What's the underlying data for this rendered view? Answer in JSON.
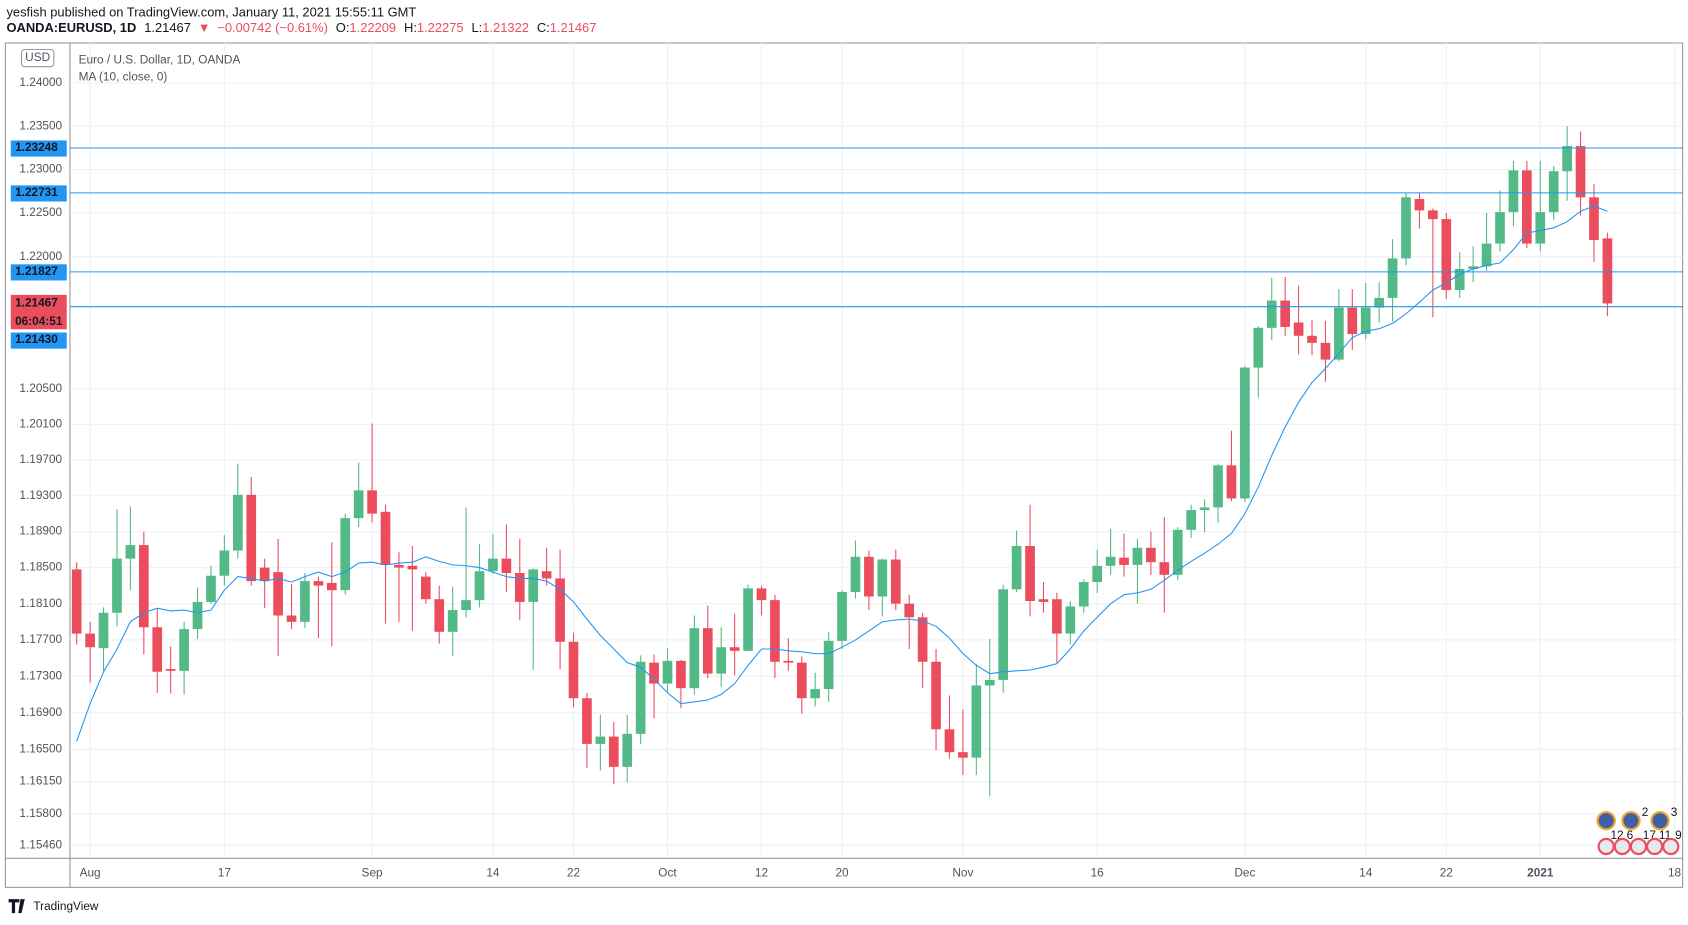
{
  "header": {
    "publisher": "yesfish published on TradingView.com, January 11, 2021 15:55:11 GMT",
    "symbol": "OANDA:EURUSD, 1D",
    "change": "−0.00742 (−0.61%)",
    "o": "O:",
    "h": "H:",
    "l": "L:",
    "c": "C:"
  },
  "chart_data": {
    "type": "candlestick",
    "title": "Euro / U.S. Dollar, 1D, OANDA",
    "currency": "USD",
    "countdown": "06:04:51",
    "up_color": "#53b987",
    "down_color": "#eb4d5c",
    "log_scale": true,
    "grid": true,
    "open": [
      1.1848,
      1.1777,
      1.1761,
      1.18,
      1.186,
      1.1875,
      1.1784,
      1.1738,
      1.1736,
      1.1782,
      1.1812,
      1.1841,
      1.1869,
      1.1931,
      1.185,
      1.1845,
      1.1797,
      1.179,
      1.1835,
      1.1833,
      1.1825,
      1.1905,
      1.1936,
      1.1912,
      1.1853,
      1.1852,
      1.184,
      1.1815,
      1.1779,
      1.1803,
      1.1814,
      1.1846,
      1.186,
      1.1844,
      1.1812,
      1.1846,
      1.1838,
      1.1768,
      1.1706,
      1.1656,
      1.1664,
      1.1631,
      1.1667,
      1.1745,
      1.1722,
      1.1747,
      1.1717,
      1.1783,
      1.1733,
      1.1762,
      1.1758,
      1.1827,
      1.1814,
      1.1747,
      1.1745,
      1.1706,
      1.1716,
      1.1769,
      1.1823,
      1.1862,
      1.1818,
      1.1859,
      1.181,
      1.1795,
      1.1746,
      1.1672,
      1.1647,
      1.1641,
      1.172,
      1.1726,
      1.1826,
      1.1874,
      1.1815,
      1.1815,
      1.1777,
      1.1807,
      1.1834,
      1.1852,
      1.1861,
      1.1853,
      1.1872,
      1.1856,
      1.1842,
      1.1892,
      1.1914,
      1.1917,
      1.1964,
      1.1927,
      1.2074,
      1.2119,
      1.215,
      1.2125,
      1.211,
      1.2102,
      1.2083,
      1.2142,
      1.2112,
      1.2142,
      1.2153,
      1.2198,
      1.2266,
      1.2253,
      1.2243,
      1.2162,
      1.2186,
      1.2189,
      1.2215,
      1.2251,
      1.2299,
      1.2215,
      1.2251,
      1.2298,
      1.2327,
      1.2268,
      1.22209
    ],
    "high": [
      1.1856,
      1.179,
      1.1806,
      1.1915,
      1.1918,
      1.189,
      1.1805,
      1.1763,
      1.179,
      1.1828,
      1.1852,
      1.1886,
      1.1966,
      1.1951,
      1.186,
      1.1882,
      1.1832,
      1.1844,
      1.184,
      1.1878,
      1.191,
      1.1967,
      1.2011,
      1.192,
      1.1867,
      1.1874,
      1.1845,
      1.183,
      1.1829,
      1.1917,
      1.1876,
      1.1887,
      1.1898,
      1.1882,
      1.1849,
      1.1872,
      1.187,
      1.1778,
      1.1712,
      1.1688,
      1.168,
      1.1688,
      1.1753,
      1.1754,
      1.1761,
      1.1748,
      1.1797,
      1.1808,
      1.1784,
      1.1799,
      1.1831,
      1.183,
      1.182,
      1.1772,
      1.1752,
      1.1734,
      1.1779,
      1.1825,
      1.188,
      1.1869,
      1.186,
      1.187,
      1.182,
      1.18,
      1.176,
      1.1709,
      1.1694,
      1.1744,
      1.1771,
      1.1831,
      1.1891,
      1.192,
      1.1834,
      1.1822,
      1.1813,
      1.1837,
      1.187,
      1.1893,
      1.1888,
      1.1882,
      1.189,
      1.1906,
      1.1895,
      1.192,
      1.1926,
      1.1966,
      1.2003,
      1.2076,
      1.2121,
      1.2176,
      1.2177,
      1.2167,
      1.2128,
      1.2127,
      1.2163,
      1.2163,
      1.217,
      1.2171,
      1.222,
      1.2273,
      1.2273,
      1.2255,
      1.225,
      1.2205,
      1.2212,
      1.225,
      1.2276,
      1.231,
      1.231,
      1.231,
      1.2304,
      1.235,
      1.2344,
      1.2283,
      1.22275
    ],
    "low": [
      1.1765,
      1.1723,
      1.1735,
      1.1785,
      1.1825,
      1.1754,
      1.1712,
      1.1711,
      1.171,
      1.1771,
      1.181,
      1.183,
      1.186,
      1.183,
      1.1805,
      1.1752,
      1.1782,
      1.1783,
      1.1772,
      1.1763,
      1.182,
      1.1895,
      1.19,
      1.1788,
      1.179,
      1.178,
      1.181,
      1.1766,
      1.1752,
      1.1795,
      1.1806,
      1.1843,
      1.1823,
      1.1792,
      1.1737,
      1.183,
      1.1738,
      1.1696,
      1.163,
      1.1627,
      1.1612,
      1.1614,
      1.1656,
      1.1684,
      1.1713,
      1.1695,
      1.171,
      1.1728,
      1.1718,
      1.1731,
      1.1758,
      1.1797,
      1.1728,
      1.1736,
      1.1689,
      1.1697,
      1.1702,
      1.176,
      1.1816,
      1.1803,
      1.1796,
      1.1803,
      1.176,
      1.1717,
      1.1649,
      1.164,
      1.1622,
      1.1622,
      1.1599,
      1.1712,
      1.1823,
      1.1796,
      1.18,
      1.1745,
      1.1765,
      1.18,
      1.1822,
      1.1842,
      1.184,
      1.181,
      1.1842,
      1.18,
      1.1836,
      1.1883,
      1.1889,
      1.19,
      1.1924,
      1.1923,
      1.204,
      1.2105,
      1.211,
      1.2089,
      1.2088,
      1.2058,
      1.2081,
      1.2094,
      1.2106,
      1.2125,
      1.2126,
      1.219,
      1.2232,
      1.2131,
      1.2152,
      1.2153,
      1.2171,
      1.2184,
      1.2206,
      1.2235,
      1.221,
      1.2206,
      1.2242,
      1.2264,
      1.2247,
      1.2194,
      1.21322
    ],
    "close": [
      1.1777,
      1.1762,
      1.18,
      1.186,
      1.1875,
      1.1784,
      1.1735,
      1.1736,
      1.1782,
      1.1812,
      1.1841,
      1.1869,
      1.1931,
      1.1835,
      1.1835,
      1.1797,
      1.179,
      1.1835,
      1.183,
      1.1825,
      1.1905,
      1.1936,
      1.191,
      1.1853,
      1.185,
      1.1848,
      1.1815,
      1.1779,
      1.1803,
      1.1814,
      1.1846,
      1.186,
      1.1844,
      1.1812,
      1.1848,
      1.1838,
      1.1768,
      1.1706,
      1.1656,
      1.1664,
      1.1631,
      1.1667,
      1.1746,
      1.1722,
      1.1747,
      1.1717,
      1.1783,
      1.1733,
      1.1762,
      1.1758,
      1.1827,
      1.1814,
      1.1746,
      1.1745,
      1.1706,
      1.1716,
      1.1769,
      1.1823,
      1.1862,
      1.1818,
      1.1859,
      1.181,
      1.1795,
      1.1746,
      1.1672,
      1.1647,
      1.1641,
      1.172,
      1.1726,
      1.1826,
      1.1874,
      1.1813,
      1.1812,
      1.1777,
      1.1807,
      1.1834,
      1.1852,
      1.1862,
      1.1853,
      1.1872,
      1.1856,
      1.1842,
      1.1892,
      1.1914,
      1.1917,
      1.1964,
      1.1927,
      1.2074,
      1.2119,
      1.215,
      1.212,
      1.211,
      1.2102,
      1.2083,
      1.2142,
      1.2112,
      1.2142,
      1.2153,
      1.2198,
      1.2268,
      1.2253,
      1.2243,
      1.2162,
      1.2186,
      1.2189,
      1.2215,
      1.2251,
      1.2299,
      1.2215,
      1.2251,
      1.2298,
      1.2327,
      1.2268,
      1.2219,
      1.21467
    ],
    "ma": {
      "name": "MA (10, close, 0)",
      "color": "#2196f3",
      "values": [
        1.1659,
        1.17,
        1.1735,
        1.176,
        1.179,
        1.18,
        1.1805,
        1.1802,
        1.1803,
        1.18,
        1.1803,
        1.1825,
        1.184,
        1.1838,
        1.1835,
        1.1838,
        1.1834,
        1.184,
        1.1845,
        1.184,
        1.1845,
        1.1855,
        1.1856,
        1.1853,
        1.1855,
        1.1856,
        1.1862,
        1.1857,
        1.1853,
        1.1852,
        1.185,
        1.1845,
        1.184,
        1.1838,
        1.1838,
        1.1835,
        1.1826,
        1.1812,
        1.1793,
        1.1775,
        1.176,
        1.1745,
        1.174,
        1.1727,
        1.1712,
        1.17,
        1.1702,
        1.1704,
        1.171,
        1.1722,
        1.1742,
        1.176,
        1.176,
        1.1758,
        1.1757,
        1.1755,
        1.1755,
        1.1762,
        1.177,
        1.178,
        1.179,
        1.1792,
        1.1793,
        1.1791,
        1.1785,
        1.1772,
        1.1755,
        1.1742,
        1.1733,
        1.1735,
        1.1736,
        1.1737,
        1.174,
        1.1744,
        1.176,
        1.178,
        1.1795,
        1.181,
        1.182,
        1.1822,
        1.1826,
        1.1836,
        1.1847,
        1.1857,
        1.1866,
        1.1876,
        1.1888,
        1.191,
        1.194,
        1.1975,
        1.2007,
        1.2035,
        1.2057,
        1.2073,
        1.209,
        1.2108,
        1.2115,
        1.2118,
        1.2124,
        1.2135,
        1.2148,
        1.2162,
        1.217,
        1.218,
        1.2186,
        1.219,
        1.2193,
        1.2208,
        1.2227,
        1.223,
        1.2233,
        1.224,
        1.2252,
        1.2258,
        1.2252
      ]
    },
    "price_lines": {
      "color": "#2196f3",
      "values": [
        {
          "value": 1.23248,
          "label": "1.23248"
        },
        {
          "value": 1.22731,
          "label": "1.22731"
        },
        {
          "value": 1.21827,
          "label": "1.21827"
        },
        {
          "value": 1.2143,
          "label": "1.21430"
        }
      ]
    },
    "ylim": [
      1.1533,
      1.2444
    ],
    "yticks": [
      {
        "value": 1.24,
        "label": "1.24000"
      },
      {
        "value": 1.235,
        "label": "1.23500"
      },
      {
        "value": 1.23,
        "label": "1.23000"
      },
      {
        "value": 1.225,
        "label": "1.22500"
      },
      {
        "value": 1.22,
        "label": "1.22000"
      },
      {
        "value": 1.205,
        "label": "1.20500"
      },
      {
        "value": 1.201,
        "label": "1.20100"
      },
      {
        "value": 1.197,
        "label": "1.19700"
      },
      {
        "value": 1.193,
        "label": "1.19300"
      },
      {
        "value": 1.189,
        "label": "1.18900"
      },
      {
        "value": 1.185,
        "label": "1.18500"
      },
      {
        "value": 1.181,
        "label": "1.18100"
      },
      {
        "value": 1.177,
        "label": "1.17700"
      },
      {
        "value": 1.173,
        "label": "1.17300"
      },
      {
        "value": 1.169,
        "label": "1.16900"
      },
      {
        "value": 1.165,
        "label": "1.16500"
      },
      {
        "value": 1.1615,
        "label": "1.16150"
      },
      {
        "value": 1.158,
        "label": "1.15800"
      },
      {
        "value": 1.1546,
        "label": "1.15460"
      }
    ],
    "xlim": [
      -0.5,
      119.6
    ],
    "xticks": [
      {
        "value": 1,
        "label": "Aug"
      },
      {
        "value": 11,
        "label": "17"
      },
      {
        "value": 22,
        "label": "Sep"
      },
      {
        "value": 31,
        "label": "14"
      },
      {
        "value": 37,
        "label": "22"
      },
      {
        "value": 44,
        "label": "Oct"
      },
      {
        "value": 51,
        "label": "12"
      },
      {
        "value": 57,
        "label": "20"
      },
      {
        "value": 66,
        "label": "Nov"
      },
      {
        "value": 76,
        "label": "16"
      },
      {
        "value": 87,
        "label": "Dec"
      },
      {
        "value": 96,
        "label": "14"
      },
      {
        "value": 102,
        "label": "22"
      },
      {
        "value": 109,
        "label": "2021"
      },
      {
        "value": 119,
        "label": "18"
      }
    ],
    "events_top": [
      "2",
      "3"
    ],
    "events_bottom": [
      "12",
      "6",
      "17",
      "11",
      "9"
    ]
  },
  "footer": {
    "brand": "TradingView"
  }
}
